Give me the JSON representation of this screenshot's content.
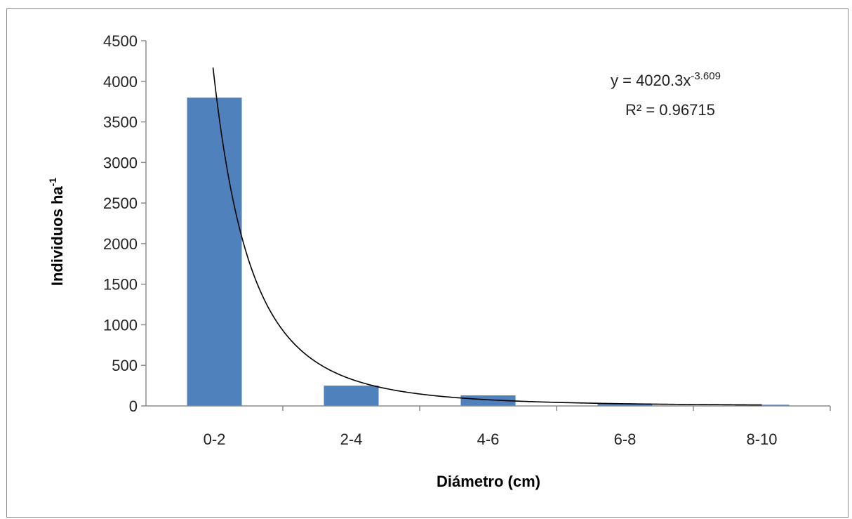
{
  "chart_data": {
    "type": "bar",
    "categories": [
      "0-2",
      "2-4",
      "4-6",
      "6-8",
      "8-10"
    ],
    "values": [
      3800,
      250,
      130,
      30,
      15
    ],
    "xlabel": "Diámetro (cm)",
    "ylabel": {
      "text": "Individuos  ha",
      "superscript": "-1"
    },
    "ylim": [
      0,
      4500
    ],
    "yticks": [
      0,
      500,
      1000,
      1500,
      2000,
      2500,
      3000,
      3500,
      4000,
      4500
    ],
    "grid": false,
    "bar_color": "#4f81bd",
    "trendline": {
      "type": "power",
      "coefficient": 4020.3,
      "exponent": -3.609,
      "equation": {
        "base": "y = 4020.3x",
        "superscript": "-3.609"
      },
      "r_squared_label": "R² = 0.96715",
      "color": "#000000"
    }
  }
}
